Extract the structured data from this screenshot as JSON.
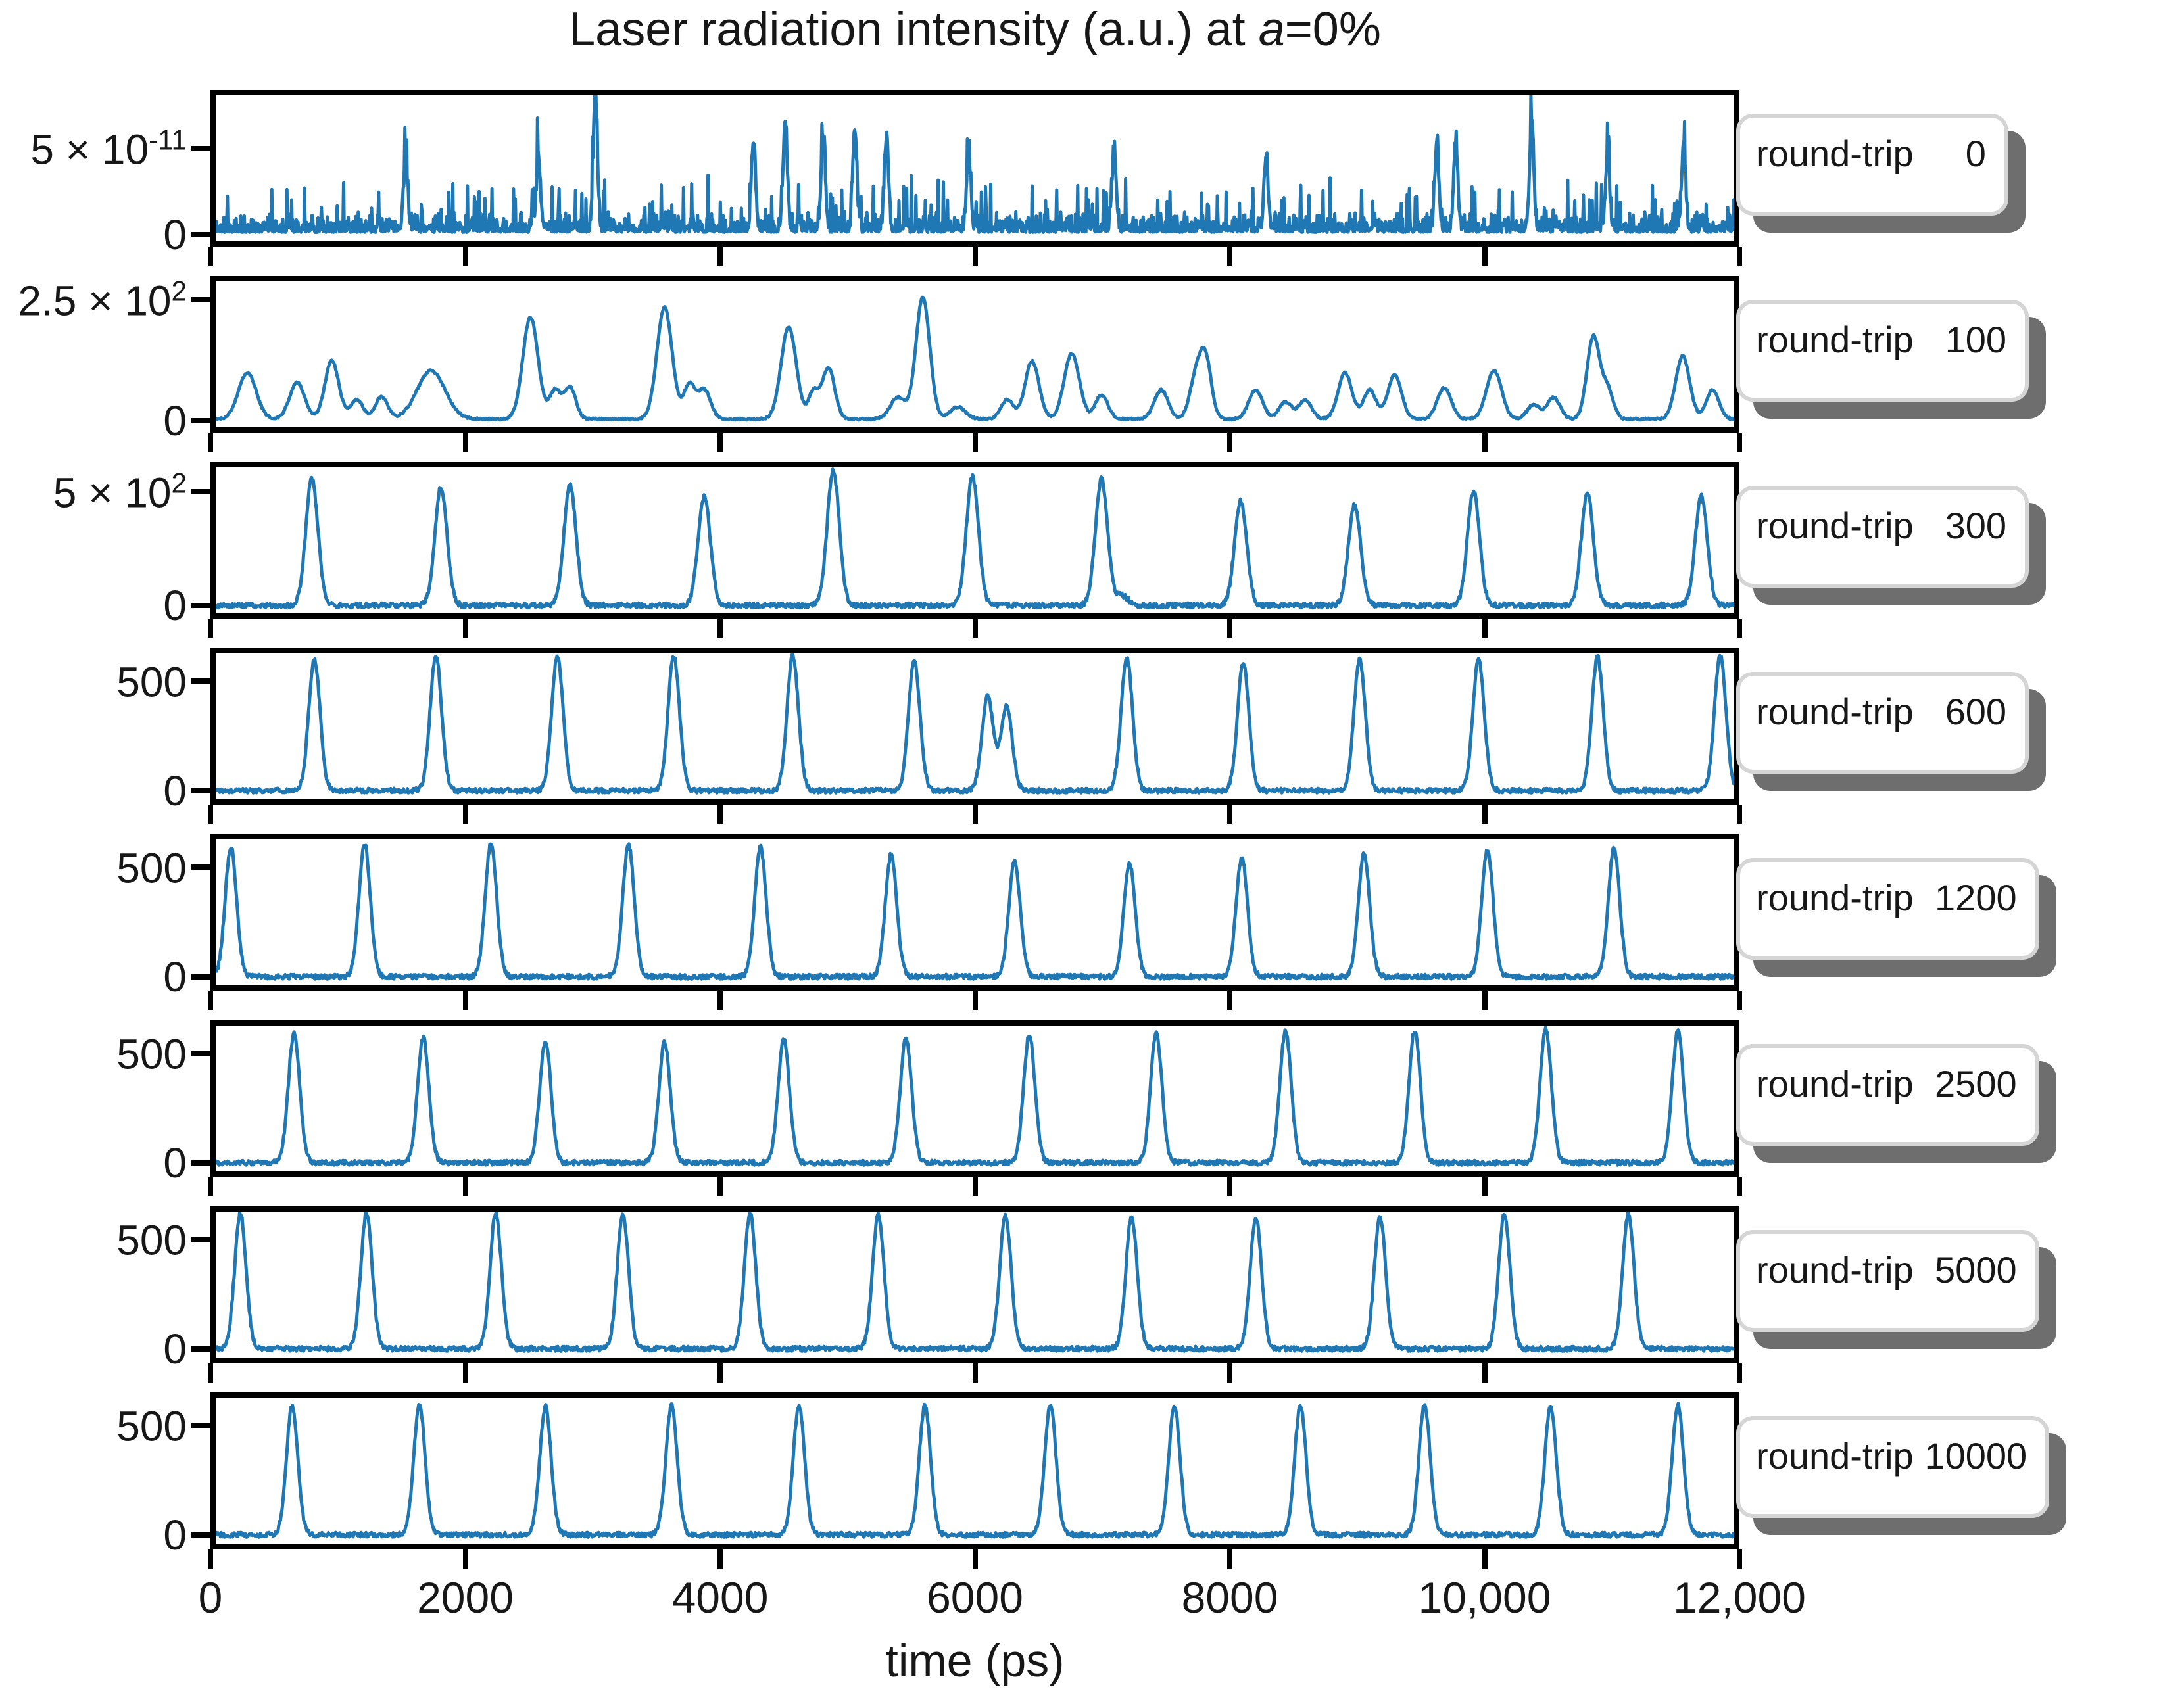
{
  "chart_data": {
    "type": "line",
    "title": {
      "prefix": "Laser radiation intensity (a.u.) at ",
      "var": "a",
      "suffix": "=0%"
    },
    "xlabel": "time (ps)",
    "x_range": [
      0,
      12000
    ],
    "x_ticks": [
      {
        "value": 0,
        "label": "0"
      },
      {
        "value": 2000,
        "label": "2000"
      },
      {
        "value": 4000,
        "label": "4000"
      },
      {
        "value": 6000,
        "label": "6000"
      },
      {
        "value": 8000,
        "label": "8000"
      },
      {
        "value": 10000,
        "label": "10,000"
      },
      {
        "value": 12000,
        "label": "12,000"
      }
    ],
    "line_color": "#1f77b4",
    "frame_color": "#000000",
    "badge_border_color": "#d5d5d5",
    "badge_shadow_color": "#6e6e6e",
    "grid": false,
    "panels": [
      {
        "round_trip": 0,
        "box_label": "round-trip",
        "box_number": "    0",
        "ytick_top": {
          "base": "5 × 10",
          "sup": "-11",
          "value": 5
        },
        "ytick_zero": "0",
        "ylim": [
          -0.4,
          8.1
        ],
        "y_unit": "1e-11",
        "signal": {
          "kind": "noise",
          "spikes": [
            [
              1500,
              3.9
            ],
            [
              2550,
              4.1
            ],
            [
              3000,
              8.05
            ],
            [
              4250,
              5.2
            ],
            [
              4500,
              6.3
            ],
            [
              4800,
              5.6
            ],
            [
              5050,
              5.9
            ],
            [
              5300,
              5.3
            ],
            [
              5950,
              4.5
            ],
            [
              7100,
              4.6
            ],
            [
              8300,
              4.2
            ],
            [
              9650,
              4.9
            ],
            [
              9800,
              5.1
            ],
            [
              10400,
              6.5
            ],
            [
              11000,
              4.3
            ],
            [
              11600,
              4.8
            ]
          ]
        }
      },
      {
        "round_trip": 100,
        "box_label": "round-trip",
        "box_number": "  100",
        "ytick_top": {
          "base": "2.5 × 10",
          "sup": "2",
          "value": 250
        },
        "ytick_zero": "0",
        "ylim": [
          -13,
          288
        ],
        "signal": {
          "kind": "bumps",
          "bumps": [
            [
              250,
              95,
              70
            ],
            [
              643,
              75,
              60
            ],
            [
              918,
              120,
              55
            ],
            [
              1114,
              40,
              50
            ],
            [
              1310,
              45,
              50
            ],
            [
              1702,
              100,
              110
            ],
            [
              2487,
              210,
              60
            ],
            [
              2683,
              60,
              45
            ],
            [
              2801,
              65,
              45
            ],
            [
              3547,
              230,
              60
            ],
            [
              3743,
              70,
              45
            ],
            [
              3861,
              60,
              50
            ],
            [
              4528,
              190,
              60
            ],
            [
              4724,
              55,
              40
            ],
            [
              4842,
              105,
              50
            ],
            [
              5392,
              45,
              60
            ],
            [
              5588,
              250,
              55
            ],
            [
              5863,
              25,
              60
            ],
            [
              6255,
              40,
              50
            ],
            [
              6451,
              120,
              55
            ],
            [
              6765,
              135,
              60
            ],
            [
              7001,
              50,
              50
            ],
            [
              7472,
              60,
              55
            ],
            [
              7747,
              85,
              50
            ],
            [
              7825,
              115,
              45
            ],
            [
              8218,
              60,
              55
            ],
            [
              8453,
              35,
              50
            ],
            [
              8610,
              40,
              50
            ],
            [
              8924,
              95,
              55
            ],
            [
              9120,
              60,
              50
            ],
            [
              9317,
              90,
              55
            ],
            [
              9709,
              65,
              55
            ],
            [
              10102,
              100,
              60
            ],
            [
              10416,
              30,
              50
            ],
            [
              10573,
              45,
              50
            ],
            [
              10887,
              170,
              50
            ],
            [
              11000,
              60,
              45
            ],
            [
              11593,
              130,
              55
            ],
            [
              11829,
              60,
              50
            ]
          ]
        }
      },
      {
        "round_trip": 300,
        "box_label": "round-trip",
        "box_number": "  300",
        "ytick_top": {
          "base": "5 × 10",
          "sup": "2",
          "value": 500
        },
        "ytick_zero": "0",
        "ylim": [
          -35,
          607
        ],
        "signal": {
          "kind": "pulses",
          "sigma": 48,
          "peaks": [
            [
              760,
              555
            ],
            [
              1780,
              520
            ],
            [
              2800,
              530
            ],
            [
              3860,
              480
            ],
            [
              4880,
              595
            ],
            [
              5980,
              565
            ],
            [
              7000,
              555
            ],
            [
              7160,
              45
            ],
            [
              8100,
              460
            ],
            [
              9000,
              445
            ],
            [
              9940,
              505
            ],
            [
              10840,
              490
            ],
            [
              11740,
              480
            ]
          ]
        }
      },
      {
        "round_trip": 600,
        "box_label": "round-trip",
        "box_number": "  600",
        "ytick_top": {
          "base": "500",
          "sup": "",
          "value": 500
        },
        "ytick_zero": "0",
        "ylim": [
          -40,
          627
        ],
        "signal": {
          "kind": "pulses",
          "sigma": 45,
          "peaks": [
            [
              780,
              600
            ],
            [
              1740,
              620
            ],
            [
              2700,
              612
            ],
            [
              3620,
              615
            ],
            [
              4560,
              618
            ],
            [
              5520,
              600
            ],
            [
              6100,
              430
            ],
            [
              6250,
              385
            ],
            [
              7200,
              610
            ],
            [
              8120,
              585
            ],
            [
              9040,
              600
            ],
            [
              9980,
              598
            ],
            [
              10920,
              612
            ],
            [
              11890,
              620
            ]
          ]
        }
      },
      {
        "round_trip": 1200,
        "box_label": "round-trip",
        "box_number": " 1200",
        "ytick_top": {
          "base": "500",
          "sup": "",
          "value": 500
        },
        "ytick_zero": "0",
        "ylim": [
          -40,
          627
        ],
        "signal": {
          "kind": "pulses",
          "sigma": 45,
          "peaks": [
            [
              120,
              595
            ],
            [
              1177,
              605
            ],
            [
              2175,
              609
            ],
            [
              3262,
              605
            ],
            [
              4305,
              591
            ],
            [
              5337,
              558
            ],
            [
              6313,
              526
            ],
            [
              7221,
              521
            ],
            [
              8109,
              544
            ],
            [
              9074,
              563
            ],
            [
              10050,
              581
            ],
            [
              11050,
              591
            ]
          ]
        }
      },
      {
        "round_trip": 2500,
        "box_label": "round-trip",
        "box_number": " 2500",
        "ytick_top": {
          "base": "500",
          "sup": "",
          "value": 500
        },
        "ytick_zero": "0",
        "ylim": [
          -40,
          627
        ],
        "signal": {
          "kind": "pulses",
          "sigma": 45,
          "peaks": [
            [
              619,
              593
            ],
            [
              1640,
              572
            ],
            [
              2605,
              556
            ],
            [
              3547,
              550
            ],
            [
              4489,
              560
            ],
            [
              5455,
              572
            ],
            [
              6429,
              585
            ],
            [
              7433,
              594
            ],
            [
              8454,
              600
            ],
            [
              9475,
              604
            ],
            [
              10511,
              608
            ],
            [
              11555,
              602
            ]
          ]
        }
      },
      {
        "round_trip": 5000,
        "box_label": "round-trip",
        "box_number": " 5000",
        "ytick_top": {
          "base": "500",
          "sup": "",
          "value": 500
        },
        "ytick_zero": "0",
        "ylim": [
          -40,
          627
        ],
        "signal": {
          "kind": "pulses",
          "sigma": 45,
          "peaks": [
            [
              195,
              618
            ],
            [
              1192,
              620
            ],
            [
              2213,
              621
            ],
            [
              3218,
              618
            ],
            [
              4223,
              616
            ],
            [
              5236,
              615
            ],
            [
              6241,
              610
            ],
            [
              7238,
              604
            ],
            [
              8220,
              600
            ],
            [
              9201,
              603
            ],
            [
              10183,
              613
            ],
            [
              11164,
              616
            ]
          ]
        }
      },
      {
        "round_trip": 10000,
        "box_label": "round-trip",
        "box_number": "10000",
        "ytick_top": {
          "base": "500",
          "sup": "",
          "value": 500
        },
        "ytick_zero": "0",
        "ylim": [
          -40,
          627
        ],
        "signal": {
          "kind": "pulses",
          "sigma": 45,
          "peaks": [
            [
              604,
              590
            ],
            [
              1610,
              592
            ],
            [
              2606,
              588
            ],
            [
              3602,
              590
            ],
            [
              4609,
              591
            ],
            [
              5605,
              589
            ],
            [
              6596,
              590
            ],
            [
              7576,
              588
            ],
            [
              8572,
              591
            ],
            [
              9553,
              590
            ],
            [
              10549,
              589
            ],
            [
              11555,
              592
            ]
          ]
        }
      }
    ]
  }
}
